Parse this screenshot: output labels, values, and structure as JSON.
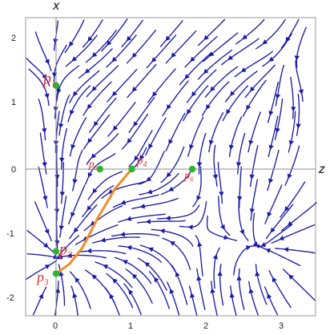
{
  "axes": {
    "x_title": "Z",
    "y_title": "X",
    "x_ticks": [
      "0",
      "1",
      "2",
      "3"
    ],
    "y_ticks": [
      "2",
      "1",
      "0",
      "-1",
      "-2"
    ]
  },
  "points": [
    {
      "id": "p1",
      "label": "p",
      "sub": "1",
      "z": 0.0,
      "x": 1.28
    },
    {
      "id": "p2",
      "label": "p",
      "sub": "2",
      "z": 0.0,
      "x": -1.26
    },
    {
      "id": "p3",
      "label": "p",
      "sub": "3",
      "z": 0.0,
      "x": -1.6
    },
    {
      "id": "p4",
      "label": "p",
      "sub": "4",
      "z": 1.0,
      "x": 0.0
    },
    {
      "id": "p5",
      "label": "p",
      "sub": "5",
      "z": 0.58,
      "x": 0.0
    },
    {
      "id": "p6",
      "label": "p",
      "sub": "6",
      "z": 1.8,
      "x": 0.0
    }
  ],
  "trajectory": {
    "color": "#f28c28",
    "points": [
      [
        0.0,
        -1.6
      ],
      [
        0.18,
        -1.45
      ],
      [
        0.35,
        -1.2
      ],
      [
        0.55,
        -0.75
      ],
      [
        0.78,
        -0.3
      ],
      [
        1.0,
        0.0
      ]
    ]
  },
  "colors": {
    "stream": "#1a1aa8",
    "point_fill": "#2db52d",
    "point_label": "#e8332b",
    "axis": "#888888"
  }
}
